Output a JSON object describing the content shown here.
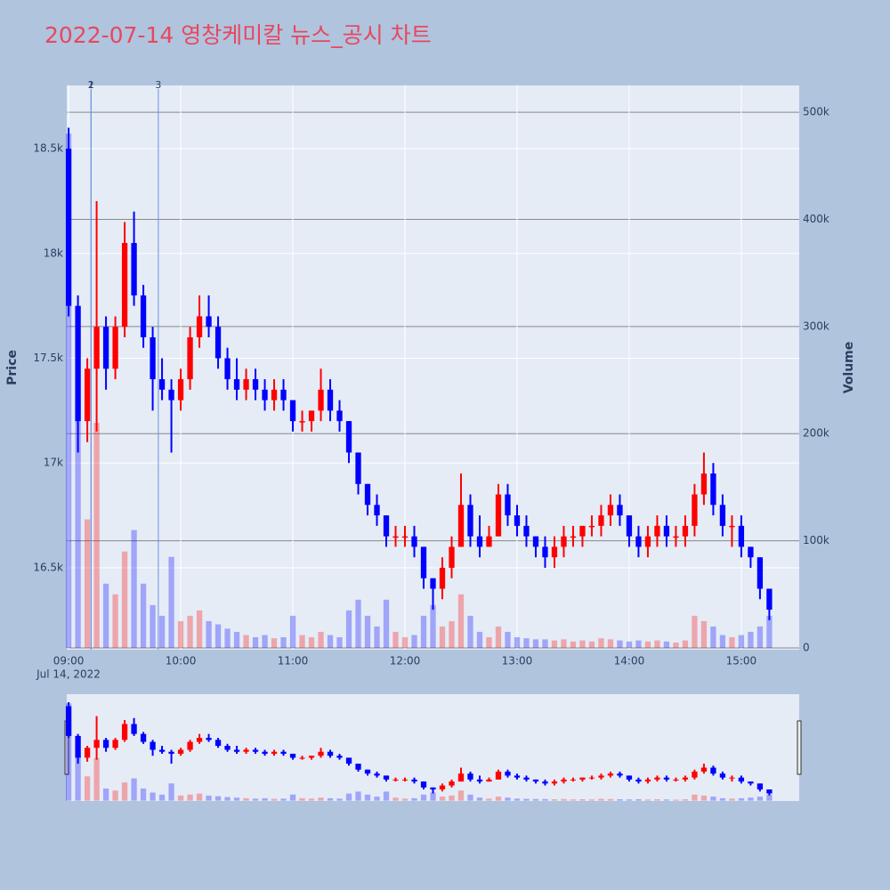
{
  "chart_data": {
    "type": "candlestick",
    "title": "2022-07-14 영창케미칼 뉴스_공시 차트",
    "y_label": "Price",
    "y2_label": "Volume",
    "x_date_label": "Jul 14, 2022",
    "increasing_color": "#ff0000",
    "decreasing_color": "#0000ff",
    "x": [
      "2022-07-14 09:00",
      "2022-07-14 09:05",
      "2022-07-14 09:10",
      "2022-07-14 09:15",
      "2022-07-14 09:20",
      "2022-07-14 09:25",
      "2022-07-14 09:30",
      "2022-07-14 09:35",
      "2022-07-14 09:40",
      "2022-07-14 09:45",
      "2022-07-14 09:50",
      "2022-07-14 09:55",
      "2022-07-14 10:00",
      "2022-07-14 10:05",
      "2022-07-14 10:10",
      "2022-07-14 10:15",
      "2022-07-14 10:20",
      "2022-07-14 10:25",
      "2022-07-14 10:30",
      "2022-07-14 10:35",
      "2022-07-14 10:40",
      "2022-07-14 10:45",
      "2022-07-14 10:50",
      "2022-07-14 10:55",
      "2022-07-14 11:00",
      "2022-07-14 11:05",
      "2022-07-14 11:10",
      "2022-07-14 11:15",
      "2022-07-14 11:20",
      "2022-07-14 11:25",
      "2022-07-14 11:30",
      "2022-07-14 11:35",
      "2022-07-14 11:40",
      "2022-07-14 11:45",
      "2022-07-14 11:50",
      "2022-07-14 11:55",
      "2022-07-14 12:00",
      "2022-07-14 12:05",
      "2022-07-14 12:10",
      "2022-07-14 12:15",
      "2022-07-14 12:20",
      "2022-07-14 12:25",
      "2022-07-14 12:30",
      "2022-07-14 12:35",
      "2022-07-14 12:40",
      "2022-07-14 12:45",
      "2022-07-14 12:50",
      "2022-07-14 12:55",
      "2022-07-14 13:00",
      "2022-07-14 13:05",
      "2022-07-14 13:10",
      "2022-07-14 13:15",
      "2022-07-14 13:20",
      "2022-07-14 13:25",
      "2022-07-14 13:30",
      "2022-07-14 13:35",
      "2022-07-14 13:40",
      "2022-07-14 13:45",
      "2022-07-14 13:50",
      "2022-07-14 13:55",
      "2022-07-14 14:00",
      "2022-07-14 14:05",
      "2022-07-14 14:10",
      "2022-07-14 14:15",
      "2022-07-14 14:20",
      "2022-07-14 14:25",
      "2022-07-14 14:30",
      "2022-07-14 14:35",
      "2022-07-14 14:40",
      "2022-07-14 14:45",
      "2022-07-14 14:50",
      "2022-07-14 14:55",
      "2022-07-14 15:00",
      "2022-07-14 15:05",
      "2022-07-14 15:10",
      "2022-07-14 15:15"
    ],
    "open": [
      18500,
      17750,
      17200,
      17450,
      17650,
      17450,
      17650,
      18050,
      17800,
      17600,
      17400,
      17350,
      17300,
      17400,
      17600,
      17700,
      17650,
      17500,
      17400,
      17350,
      17400,
      17350,
      17300,
      17350,
      17300,
      17200,
      17200,
      17250,
      17350,
      17250,
      17200,
      17050,
      16900,
      16800,
      16750,
      16650,
      16650,
      16650,
      16600,
      16450,
      16400,
      16500,
      16600,
      16800,
      16650,
      16600,
      16650,
      16850,
      16750,
      16700,
      16650,
      16600,
      16550,
      16600,
      16650,
      16650,
      16700,
      16700,
      16750,
      16800,
      16750,
      16650,
      16600,
      16650,
      16700,
      16650,
      16650,
      16700,
      16850,
      16950,
      16800,
      16700,
      16700,
      16600,
      16550,
      16400
    ],
    "high": [
      18600,
      17800,
      17500,
      18250,
      17700,
      17700,
      18150,
      18200,
      17850,
      17650,
      17500,
      17400,
      17450,
      17650,
      17800,
      17800,
      17700,
      17550,
      17500,
      17450,
      17450,
      17400,
      17400,
      17400,
      17300,
      17250,
      17250,
      17450,
      17400,
      17300,
      17200,
      17050,
      16900,
      16850,
      16750,
      16700,
      16700,
      16700,
      16600,
      16450,
      16550,
      16650,
      16950,
      16850,
      16750,
      16700,
      16900,
      16900,
      16800,
      16750,
      16650,
      16650,
      16650,
      16700,
      16700,
      16700,
      16750,
      16800,
      16850,
      16850,
      16750,
      16700,
      16700,
      16750,
      16750,
      16700,
      16750,
      16900,
      17050,
      17000,
      16850,
      16750,
      16750,
      16600,
      16550,
      16400
    ],
    "low": [
      17700,
      17050,
      17100,
      17150,
      17350,
      17400,
      17600,
      17750,
      17550,
      17250,
      17300,
      17050,
      17250,
      17350,
      17550,
      17600,
      17450,
      17350,
      17300,
      17300,
      17300,
      17250,
      17250,
      17250,
      17150,
      17150,
      17150,
      17200,
      17200,
      17150,
      17000,
      16850,
      16750,
      16700,
      16600,
      16600,
      16600,
      16550,
      16400,
      16300,
      16350,
      16450,
      16600,
      16600,
      16550,
      16600,
      16650,
      16700,
      16650,
      16600,
      16550,
      16500,
      16500,
      16550,
      16600,
      16600,
      16650,
      16650,
      16700,
      16700,
      16600,
      16550,
      16550,
      16600,
      16600,
      16600,
      16600,
      16650,
      16800,
      16750,
      16650,
      16600,
      16550,
      16500,
      16350,
      16250
    ],
    "close": [
      17750,
      17200,
      17450,
      17650,
      17450,
      17650,
      18050,
      17800,
      17600,
      17400,
      17350,
      17300,
      17400,
      17600,
      17700,
      17650,
      17500,
      17400,
      17350,
      17400,
      17350,
      17300,
      17350,
      17300,
      17200,
      17200,
      17250,
      17350,
      17250,
      17200,
      17050,
      16900,
      16800,
      16750,
      16650,
      16650,
      16650,
      16600,
      16450,
      16400,
      16500,
      16600,
      16800,
      16650,
      16600,
      16650,
      16850,
      16750,
      16700,
      16650,
      16600,
      16550,
      16600,
      16650,
      16650,
      16700,
      16700,
      16750,
      16800,
      16750,
      16650,
      16600,
      16650,
      16700,
      16650,
      16650,
      16700,
      16850,
      16950,
      16800,
      16700,
      16700,
      16600,
      16550,
      16400,
      16300
    ],
    "volume": [
      480000,
      230000,
      120000,
      210000,
      60000,
      50000,
      90000,
      110000,
      60000,
      40000,
      30000,
      85000,
      25000,
      30000,
      35000,
      25000,
      22000,
      18000,
      15000,
      12000,
      10000,
      12000,
      9000,
      10000,
      30000,
      12000,
      10000,
      15000,
      12000,
      10000,
      35000,
      45000,
      30000,
      20000,
      45000,
      15000,
      10000,
      12000,
      30000,
      40000,
      20000,
      25000,
      50000,
      30000,
      15000,
      10000,
      20000,
      15000,
      10000,
      9000,
      8000,
      8000,
      7000,
      8000,
      6000,
      7000,
      6000,
      9000,
      8000,
      7000,
      6000,
      7000,
      6000,
      7000,
      6000,
      5000,
      7000,
      30000,
      25000,
      20000,
      12000,
      10000,
      12000,
      15000,
      20000,
      30000
    ],
    "xlim": [
      "2022-07-14 08:59",
      "2022-07-14 15:31"
    ],
    "xticks": [
      {
        "value": "2022-07-14 09:00",
        "label": "09:00"
      },
      {
        "value": "2022-07-14 10:00",
        "label": "10:00"
      },
      {
        "value": "2022-07-14 11:00",
        "label": "11:00"
      },
      {
        "value": "2022-07-14 12:00",
        "label": "12:00"
      },
      {
        "value": "2022-07-14 13:00",
        "label": "13:00"
      },
      {
        "value": "2022-07-14 14:00",
        "label": "14:00"
      },
      {
        "value": "2022-07-14 15:00",
        "label": "15:00"
      }
    ],
    "ylim": [
      16109,
      18802
    ],
    "yticks": [
      {
        "value": 16500,
        "label": "16.5k"
      },
      {
        "value": 17000,
        "label": "17k"
      },
      {
        "value": 17500,
        "label": "17.5k"
      },
      {
        "value": 18000,
        "label": "18k"
      },
      {
        "value": 18500,
        "label": "18.5k"
      }
    ],
    "y2lim": [
      -1660,
      525000
    ],
    "y2ticks": [
      0,
      {
        "value": 100000,
        "label": "100k"
      },
      {
        "value": 200000,
        "label": "200k"
      },
      {
        "value": 300000,
        "label": "300k"
      },
      {
        "value": 400000,
        "label": "400k"
      },
      {
        "value": 500000,
        "label": "500k"
      }
    ],
    "annotations": [
      {
        "x": "2022-07-14 09:12",
        "text": "1"
      },
      {
        "x": "2022-07-14 09:12",
        "text": "2"
      },
      {
        "x": "2022-07-14 09:48",
        "text": "3"
      }
    ],
    "grid": true
  }
}
